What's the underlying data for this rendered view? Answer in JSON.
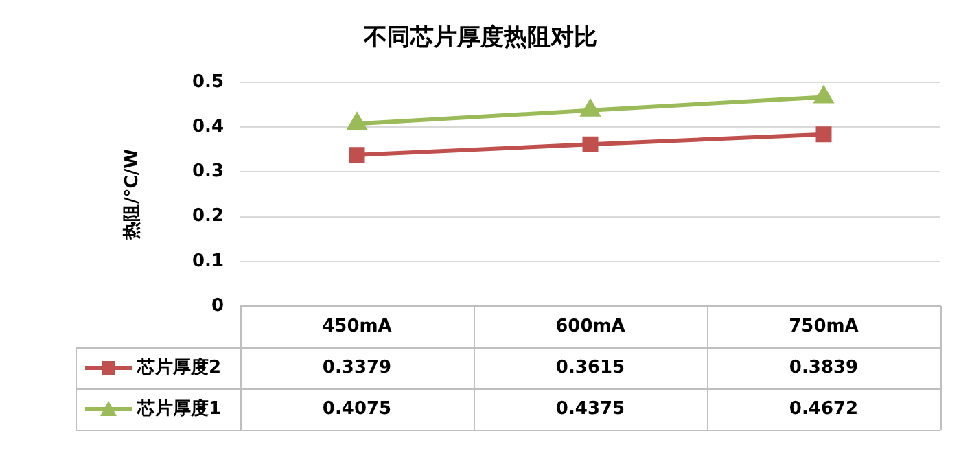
{
  "chart_data": {
    "type": "line",
    "title": "不同芯片厚度热阻对比",
    "ylabel": "热阻/°C/W",
    "categories": [
      "450mA",
      "600mA",
      "750mA"
    ],
    "series": [
      {
        "name": "芯片厚度2",
        "color": "#c0504d",
        "marker": "square",
        "values": [
          0.3379,
          0.3615,
          0.3839
        ]
      },
      {
        "name": "芯片厚度1",
        "color": "#9bbb59",
        "marker": "triangle",
        "values": [
          0.4075,
          0.4375,
          0.4672
        ]
      }
    ],
    "ylim": [
      0,
      0.5
    ],
    "yticks": [
      0,
      0.1,
      0.2,
      0.3,
      0.4,
      0.5
    ],
    "grid": "y",
    "legend": "bottom",
    "data_labels": true
  }
}
